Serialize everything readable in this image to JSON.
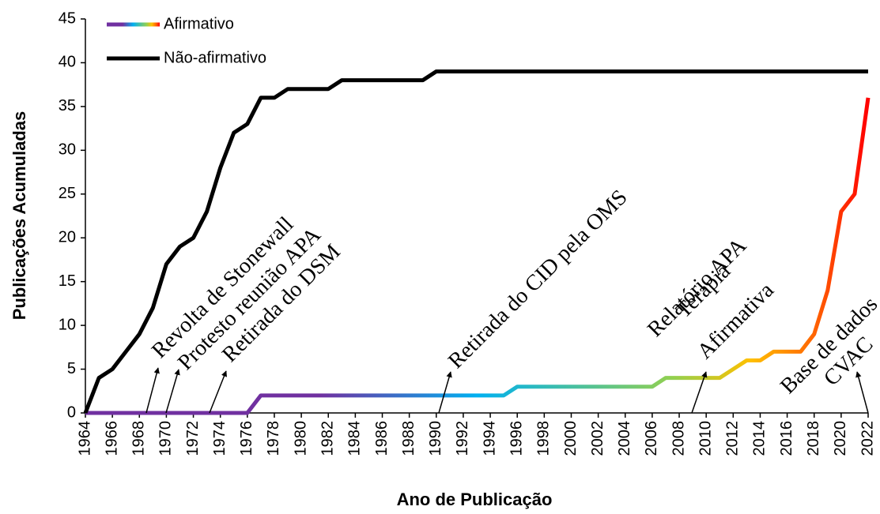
{
  "chart_data": {
    "type": "line",
    "x_label": "Ano de Publicação",
    "y_label": "Publicações Acumuladas",
    "x": [
      1964,
      1965,
      1966,
      1967,
      1968,
      1969,
      1970,
      1971,
      1972,
      1973,
      1974,
      1975,
      1976,
      1977,
      1978,
      1979,
      1980,
      1981,
      1982,
      1983,
      1984,
      1985,
      1986,
      1987,
      1988,
      1989,
      1990,
      1991,
      1992,
      1993,
      1994,
      1995,
      1996,
      1997,
      1998,
      1999,
      2000,
      2001,
      2002,
      2003,
      2004,
      2005,
      2006,
      2007,
      2008,
      2009,
      2010,
      2011,
      2012,
      2013,
      2014,
      2015,
      2016,
      2017,
      2018,
      2019,
      2020,
      2021,
      2022
    ],
    "series": [
      {
        "name": "Afirmativo",
        "colors": [
          "#7030a0",
          "#7030a0",
          "#00b0f0",
          "#92d050",
          "#ffc000",
          "#ff6600",
          "#ff0000"
        ],
        "values": [
          0,
          0,
          0,
          0,
          0,
          0,
          0,
          0,
          0,
          0,
          0,
          0,
          0,
          2,
          2,
          2,
          2,
          2,
          2,
          2,
          2,
          2,
          2,
          2,
          2,
          2,
          2,
          2,
          2,
          2,
          2,
          2,
          3,
          3,
          3,
          3,
          3,
          3,
          3,
          3,
          3,
          3,
          3,
          4,
          4,
          4,
          4,
          4,
          5,
          6,
          6,
          7,
          7,
          7,
          9,
          14,
          23,
          25,
          36
        ]
      },
      {
        "name": "Não-afirmativo",
        "color": "#000000",
        "values": [
          0,
          4,
          5,
          7,
          9,
          12,
          17,
          19,
          20,
          23,
          28,
          32,
          33,
          36,
          36,
          37,
          37,
          37,
          37,
          38,
          38,
          38,
          38,
          38,
          38,
          38,
          39,
          39,
          39,
          39,
          39,
          39,
          39,
          39,
          39,
          39,
          39,
          39,
          39,
          39,
          39,
          39,
          39,
          39,
          39,
          39,
          39,
          39,
          39,
          39,
          39,
          39,
          39,
          39,
          39,
          39,
          39,
          39,
          39
        ]
      }
    ],
    "xlim": [
      1964,
      2022
    ],
    "xticks": [
      1964,
      1966,
      1968,
      1970,
      1972,
      1974,
      1976,
      1978,
      1980,
      1982,
      1984,
      1986,
      1988,
      1990,
      1992,
      1994,
      1996,
      1998,
      2000,
      2002,
      2004,
      2006,
      2008,
      2010,
      2012,
      2014,
      2016,
      2018,
      2020,
      2022
    ],
    "ylim": [
      0,
      45
    ],
    "yticks": [
      0,
      5,
      10,
      15,
      20,
      25,
      30,
      35,
      40,
      45
    ],
    "legend": "upper left",
    "annotations": [
      "Revolta de Stonewall",
      "Protesto reunião APA",
      "Retirada do DSM",
      "Retirada do CID pela OMS",
      "Relatório APA",
      "Terapia",
      "Afirmativa",
      "Base de dados",
      "CVAC"
    ]
  }
}
